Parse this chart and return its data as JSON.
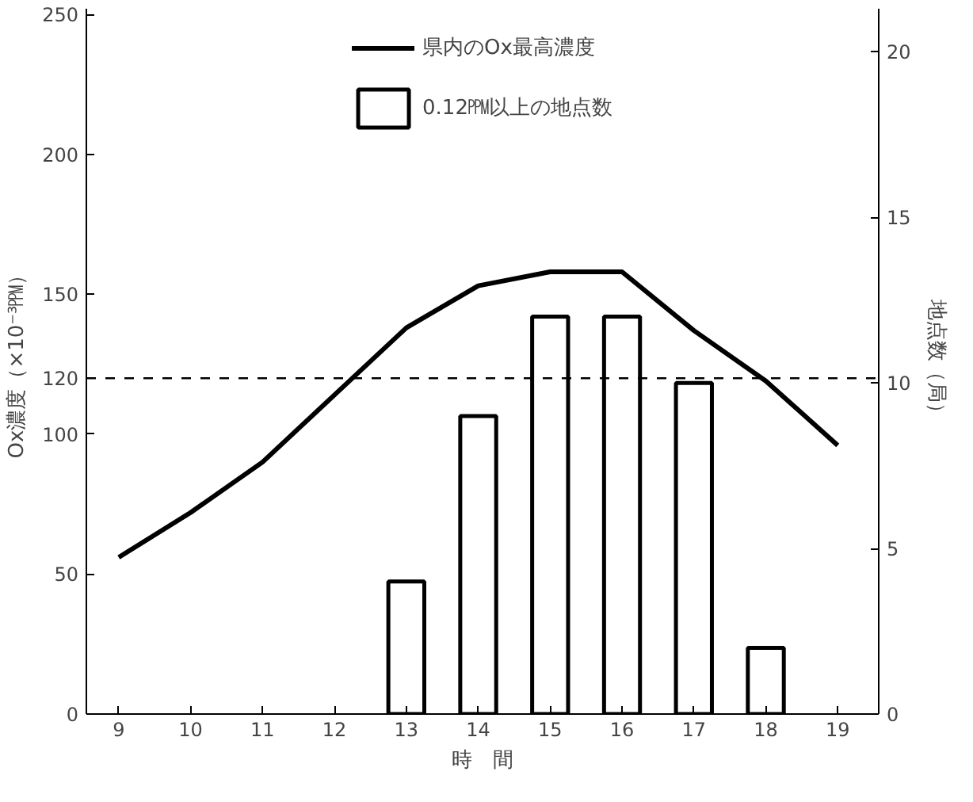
{
  "chart_data": {
    "type": "bar",
    "xlabel": "時　間",
    "ylabel": "Ox濃度（×10⁻³㏙）",
    "y2label": "地点数（局）",
    "x": [
      9,
      10,
      11,
      12,
      13,
      14,
      15,
      16,
      17,
      18,
      19
    ],
    "series": [
      {
        "name": "県内のOx最高濃度",
        "type": "line",
        "color": "#000000",
        "values": [
          56,
          72,
          90,
          114,
          138,
          153,
          158,
          158,
          137,
          119,
          96
        ]
      },
      {
        "name": "0.12㏙以上の地点数",
        "axis": "y2",
        "color": "#ffffff",
        "values": [
          null,
          null,
          null,
          null,
          4,
          9,
          12,
          12,
          10,
          2,
          null
        ]
      }
    ],
    "xlim": [
      8.55,
      19.57
    ],
    "xticks": [
      9,
      10,
      11,
      12,
      13,
      14,
      15,
      16,
      17,
      18,
      19
    ],
    "ylim": [
      0,
      252
    ],
    "yticks": [
      0,
      50,
      100,
      120,
      150,
      200,
      250
    ],
    "y2lim": [
      0,
      21.3
    ],
    "y2ticks": [
      0,
      5,
      10,
      15,
      20
    ],
    "ref_lines": [
      {
        "axis": "y",
        "value": 120,
        "line_style": "dashed",
        "color": "#000000"
      }
    ],
    "grid": false,
    "legend": "top",
    "line_style": "solid",
    "marker": "none"
  }
}
